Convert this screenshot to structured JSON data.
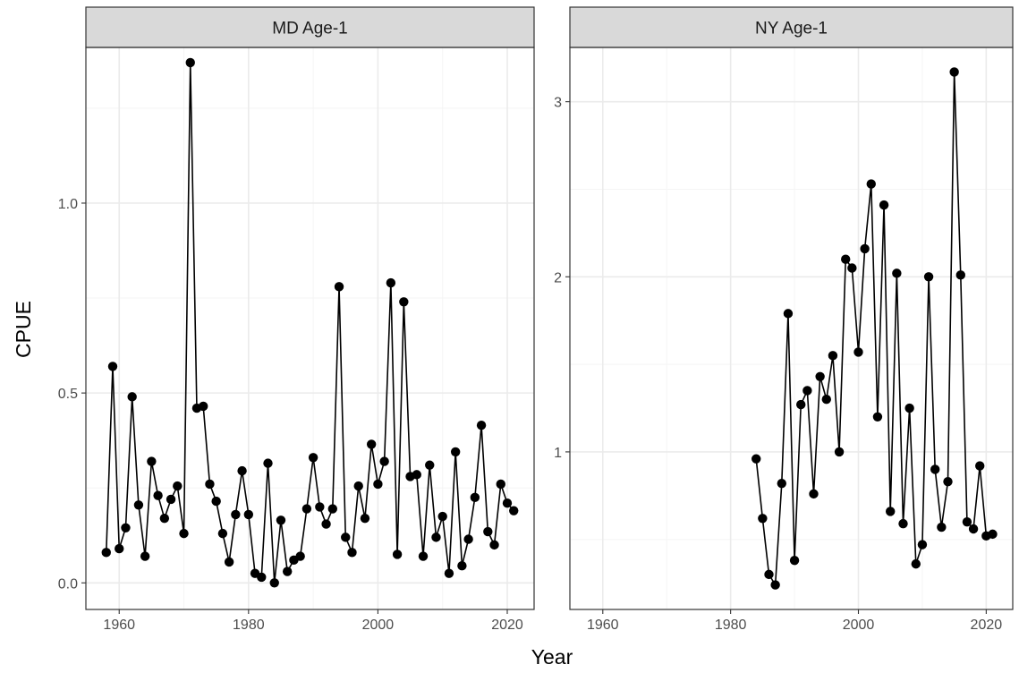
{
  "chart_data": {
    "type": "line",
    "xlabel": "Year",
    "ylabel": "CPUE",
    "grid": true,
    "theme": {
      "panel_background": "#ffffff",
      "panel_border": "#333333",
      "strip_background": "#d9d9d9",
      "grid_major": "#ebebeb",
      "grid_minor": "#f5f5f5",
      "line_color": "#000000",
      "point_color": "#000000"
    },
    "panels": [
      {
        "strip": "MD Age-1",
        "xlim": [
          1954.85,
          2024.15
        ],
        "ylim": [
          -0.07,
          1.41
        ],
        "xticks": [
          1960,
          1980,
          2000,
          2020
        ],
        "xtick_labels": [
          "1960",
          "1980",
          "2000",
          "2020"
        ],
        "yticks": [
          0,
          0.5,
          1
        ],
        "ytick_labels": [
          "0.0",
          "0.5",
          "1.0"
        ],
        "x": [
          1958,
          1959,
          1960,
          1961,
          1962,
          1963,
          1964,
          1965,
          1966,
          1967,
          1968,
          1969,
          1970,
          1971,
          1972,
          1973,
          1974,
          1975,
          1976,
          1977,
          1978,
          1979,
          1980,
          1981,
          1982,
          1983,
          1984,
          1985,
          1986,
          1987,
          1988,
          1989,
          1990,
          1991,
          1992,
          1993,
          1994,
          1995,
          1996,
          1997,
          1998,
          1999,
          2000,
          2001,
          2002,
          2003,
          2004,
          2005,
          2006,
          2007,
          2008,
          2009,
          2010,
          2011,
          2012,
          2013,
          2014,
          2015,
          2016,
          2017,
          2018,
          2019,
          2020,
          2021
        ],
        "y": [
          0.08,
          0.57,
          0.09,
          0.145,
          0.49,
          0.205,
          0.07,
          0.32,
          0.23,
          0.17,
          0.22,
          0.255,
          0.13,
          1.37,
          0.46,
          0.465,
          0.26,
          0.215,
          0.13,
          0.055,
          0.18,
          0.295,
          0.18,
          0.025,
          0.015,
          0.315,
          0.0,
          0.165,
          0.03,
          0.06,
          0.07,
          0.195,
          0.33,
          0.2,
          0.155,
          0.195,
          0.78,
          0.12,
          0.08,
          0.255,
          0.17,
          0.365,
          0.26,
          0.32,
          0.79,
          0.075,
          0.74,
          0.28,
          0.285,
          0.07,
          0.31,
          0.12,
          0.175,
          0.025,
          0.345,
          0.045,
          0.115,
          0.225,
          0.415,
          0.135,
          0.1,
          0.26,
          0.21,
          0.19
        ]
      },
      {
        "strip": "NY Age-1",
        "xlim": [
          1954.85,
          2024.15
        ],
        "ylim": [
          0.1,
          3.31
        ],
        "xticks": [
          1960,
          1980,
          2000,
          2020
        ],
        "xtick_labels": [
          "1960",
          "1980",
          "2000",
          "2020"
        ],
        "yticks": [
          1,
          2,
          3
        ],
        "ytick_labels": [
          "1",
          "2",
          "3"
        ],
        "x": [
          1984,
          1985,
          1986,
          1987,
          1988,
          1989,
          1990,
          1991,
          1992,
          1993,
          1994,
          1995,
          1996,
          1997,
          1998,
          1999,
          2000,
          2001,
          2002,
          2003,
          2004,
          2005,
          2006,
          2007,
          2008,
          2009,
          2010,
          2011,
          2012,
          2013,
          2014,
          2015,
          2016,
          2017,
          2018,
          2019,
          2020,
          2021
        ],
        "y": [
          0.96,
          0.62,
          0.3,
          0.24,
          0.82,
          1.79,
          0.38,
          1.27,
          1.35,
          0.76,
          1.43,
          1.3,
          1.55,
          1.0,
          2.1,
          2.05,
          1.57,
          2.16,
          2.53,
          1.2,
          2.41,
          0.66,
          2.02,
          0.59,
          1.25,
          0.36,
          0.47,
          2.0,
          0.9,
          0.57,
          0.83,
          3.17,
          2.01,
          0.6,
          0.56,
          0.92,
          0.52,
          0.53
        ]
      }
    ]
  }
}
